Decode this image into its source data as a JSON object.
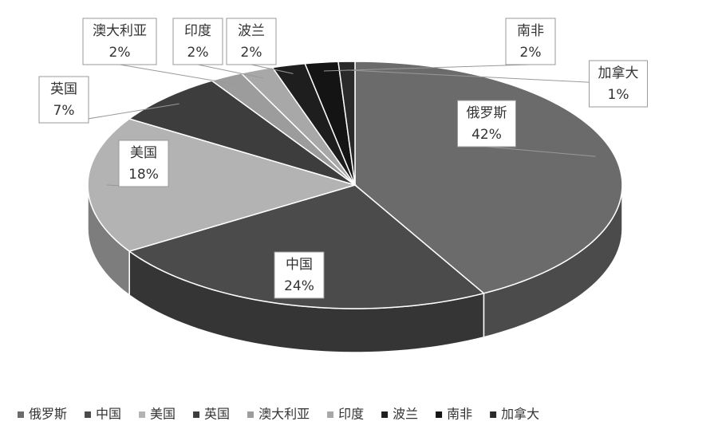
{
  "chart_data": {
    "type": "pie3d",
    "categories": [
      "俄罗斯",
      "中国",
      "美国",
      "英国",
      "澳大利亚",
      "印度",
      "波兰",
      "南非",
      "加拿大"
    ],
    "values": [
      42,
      24,
      18,
      7,
      2,
      2,
      2,
      2,
      1
    ],
    "value_labels": [
      "42%",
      "24%",
      "18%",
      "7%",
      "2%",
      "2%",
      "2%",
      "2%",
      "1%"
    ],
    "colors": [
      "#6b6b6b",
      "#4b4b4b",
      "#b3b3b3",
      "#3d3d3d",
      "#9c9c9c",
      "#a8a8a8",
      "#1e1e1e",
      "#141414",
      "#2a2a2a"
    ],
    "legend": "bottom"
  }
}
